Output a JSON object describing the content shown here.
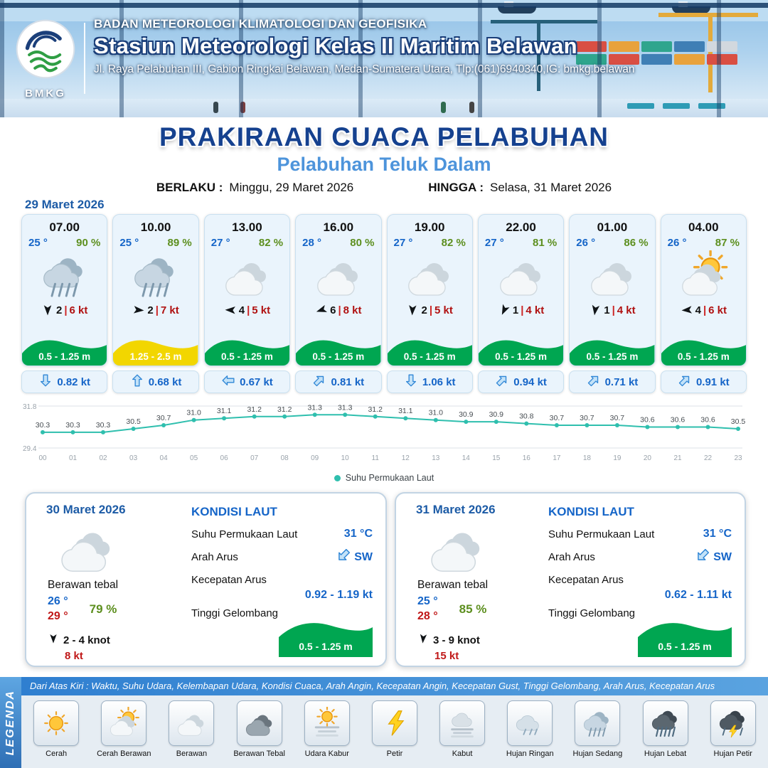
{
  "header": {
    "logo_text": "BMKG",
    "org": "BADAN METEOROLOGI KLIMATOLOGI DAN GEOFISIKA",
    "station": "Stasiun Meteorologi Kelas II Maritim Belawan",
    "address": "Jl. Raya Pelabuhan III, Gabion Ringkai Belawan, Medan-Sumatera Utara, Tlp:(061)6940340,IG: bmkg.belawan"
  },
  "title": {
    "main": "PRAKIRAAN CUACA PELABUHAN",
    "port": "Pelabuhan Teluk Dalam",
    "berlaku_label": "BERLAKU :",
    "berlaku_value": "Minggu, 29 Maret 2026",
    "hingga_label": "HINGGA :",
    "hingga_value": "Selasa, 31 Maret 2026"
  },
  "forecast": {
    "date": "29 Maret 2026",
    "cards": [
      {
        "time": "07.00",
        "temp": "25 °",
        "rh": "90 %",
        "icon": "rain",
        "wind_dir": 180,
        "wind": "2",
        "gust": "6 kt",
        "wave": "0.5 - 1.25 m",
        "wave_color": "green",
        "cur_dir": 180,
        "cur": "0.82 kt"
      },
      {
        "time": "10.00",
        "temp": "25 °",
        "rh": "89 %",
        "icon": "rain",
        "wind_dir": 95,
        "wind": "2",
        "gust": "7 kt",
        "wave": "1.25 - 2.5 m",
        "wave_color": "yellow",
        "cur_dir": 0,
        "cur": "0.68 kt"
      },
      {
        "time": "13.00",
        "temp": "27 °",
        "rh": "82 %",
        "icon": "cloud",
        "wind_dir": 272,
        "wind": "4",
        "gust": "5 kt",
        "wave": "0.5 - 1.25 m",
        "wave_color": "green",
        "cur_dir": 270,
        "cur": "0.67 kt"
      },
      {
        "time": "16.00",
        "temp": "28 °",
        "rh": "80 %",
        "icon": "cloud",
        "wind_dir": 252,
        "wind": "6",
        "gust": "8 kt",
        "wave": "0.5 - 1.25 m",
        "wave_color": "green",
        "cur_dir": 45,
        "cur": "0.81 kt"
      },
      {
        "time": "19.00",
        "temp": "27 °",
        "rh": "82 %",
        "icon": "cloud",
        "wind_dir": 183,
        "wind": "2",
        "gust": "5 kt",
        "wave": "0.5 - 1.25 m",
        "wave_color": "green",
        "cur_dir": 180,
        "cur": "1.06 kt"
      },
      {
        "time": "22.00",
        "temp": "27 °",
        "rh": "81 %",
        "icon": "cloud",
        "wind_dir": 205,
        "wind": "1",
        "gust": "4 kt",
        "wave": "0.5 - 1.25 m",
        "wave_color": "green",
        "cur_dir": 45,
        "cur": "0.94 kt"
      },
      {
        "time": "01.00",
        "temp": "26 °",
        "rh": "86 %",
        "icon": "cloud",
        "wind_dir": 188,
        "wind": "1",
        "gust": "4 kt",
        "wave": "0.5 - 1.25 m",
        "wave_color": "green",
        "cur_dir": 45,
        "cur": "0.71 kt"
      },
      {
        "time": "04.00",
        "temp": "26 °",
        "rh": "87 %",
        "icon": "suncloud",
        "wind_dir": 266,
        "wind": "4",
        "gust": "6 kt",
        "wave": "0.5 - 1.25 m",
        "wave_color": "green",
        "cur_dir": 45,
        "cur": "0.91 kt"
      }
    ]
  },
  "chart_data": {
    "type": "line",
    "x": [
      "00",
      "01",
      "02",
      "03",
      "04",
      "05",
      "06",
      "07",
      "08",
      "09",
      "10",
      "11",
      "12",
      "13",
      "14",
      "15",
      "16",
      "17",
      "18",
      "19",
      "20",
      "21",
      "22",
      "23"
    ],
    "values": [
      30.3,
      30.3,
      30.3,
      30.5,
      30.7,
      31.0,
      31.1,
      31.2,
      31.2,
      31.3,
      31.3,
      31.2,
      31.1,
      31.0,
      30.9,
      30.9,
      30.8,
      30.7,
      30.7,
      30.7,
      30.6,
      30.6,
      30.6,
      30.5
    ],
    "ylim": [
      29.4,
      31.8
    ],
    "legend": "Suhu Permukaan Laut",
    "line_color": "#2fbfae",
    "grid": true,
    "legend_position": "bottom"
  },
  "day_cards": [
    {
      "date": "30 Maret 2026",
      "condition": "Berawan tebal",
      "temp_min": "26 °",
      "temp_max": "29 °",
      "rh": "79 %",
      "wind": "2 - 4 knot",
      "gust": "8 kt",
      "sea_title": "KONDISI LAUT",
      "sst_label": "Suhu Permukaan Laut",
      "sst": "31 °C",
      "current_dir_label": "Arah Arus",
      "current_dir": "SW",
      "current_speed_label": "Kecepatan Arus",
      "current_speed": "0.92 - 1.19 kt",
      "wave_label": "Tinggi Gelombang",
      "wave": "0.5 - 1.25 m"
    },
    {
      "date": "31 Maret 2026",
      "condition": "Berawan tebal",
      "temp_min": "25 °",
      "temp_max": "28 °",
      "rh": "85 %",
      "wind": "3 - 9 knot",
      "gust": "15 kt",
      "sea_title": "KONDISI LAUT",
      "sst_label": "Suhu Permukaan Laut",
      "sst": "31 °C",
      "current_dir_label": "Arah Arus",
      "current_dir": "SW",
      "current_speed_label": "Kecepatan Arus",
      "current_speed": "0.62 - 1.11 kt",
      "wave_label": "Tinggi Gelombang",
      "wave": "0.5 - 1.25 m"
    }
  ],
  "legend": {
    "vertical_label": "LEGENDA",
    "description": "Dari Atas Kiri : Waktu, Suhu Udara, Kelembapan Udara, Kondisi Cuaca, Arah Angin, Kecepatan Angin, Kecepatan Gust, Tinggi Gelombang, Arah Arus, Kecepatan Arus",
    "items": [
      {
        "label": "Cerah",
        "icon": "sun"
      },
      {
        "label": "Cerah Berawan",
        "icon": "suncloud"
      },
      {
        "label": "Berawan",
        "icon": "cloud"
      },
      {
        "label": "Berawan Tebal",
        "icon": "cloud-dark"
      },
      {
        "label": "Udara Kabur",
        "icon": "haze"
      },
      {
        "label": "Petir",
        "icon": "lightning"
      },
      {
        "label": "Kabut",
        "icon": "fog"
      },
      {
        "label": "Hujan Ringan",
        "icon": "rain-light"
      },
      {
        "label": "Hujan Sedang",
        "icon": "rain"
      },
      {
        "label": "Hujan Lebat",
        "icon": "rain-heavy"
      },
      {
        "label": "Hujan Petir",
        "icon": "storm"
      }
    ]
  },
  "colors": {
    "accent_blue": "#1565c8",
    "title_navy": "#15418f",
    "port_blue": "#4d94db",
    "humidity_green": "#5d8f1f",
    "gust_red": "#b01111",
    "wave_green": "#00a651",
    "wave_yellow": "#f2d600",
    "sst_line": "#2fbfae"
  }
}
